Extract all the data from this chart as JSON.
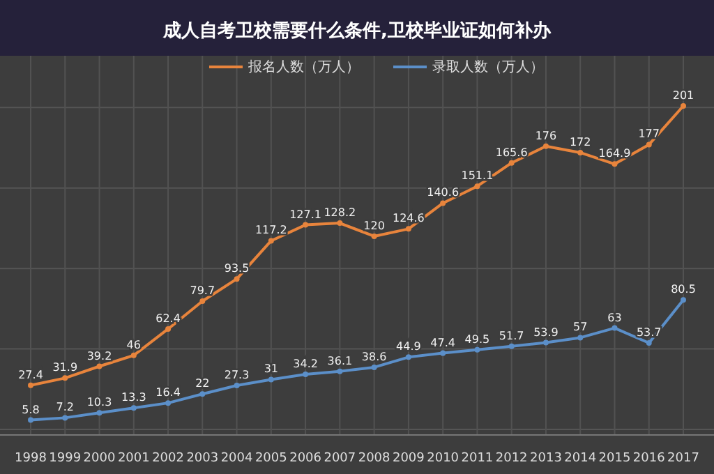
{
  "chart_data": {
    "type": "line",
    "title": "成人自考卫校需要什么条件,卫校毕业证如何补办",
    "categories": [
      "1998",
      "1999",
      "2000",
      "2001",
      "2002",
      "2003",
      "2004",
      "2005",
      "2006",
      "2007",
      "2008",
      "2009",
      "2010",
      "2011",
      "2012",
      "2013",
      "2014",
      "2015",
      "2016",
      "2017"
    ],
    "series": [
      {
        "name": "报名人数（万人）",
        "color": "#e8843c",
        "values": [
          27.4,
          31.9,
          39.2,
          46,
          62.4,
          79.7,
          93.5,
          117.2,
          127.1,
          128.2,
          120,
          124.6,
          140.6,
          151.1,
          165.6,
          176,
          172,
          164.9,
          177,
          201
        ]
      },
      {
        "name": "录取人数（万人）",
        "color": "#5b8fc9",
        "values": [
          5.8,
          7.2,
          10.3,
          13.3,
          16.4,
          22,
          27.3,
          31,
          34.2,
          36.1,
          38.6,
          44.9,
          47.4,
          49.5,
          51.7,
          53.9,
          57,
          63,
          53.7,
          80.5
        ]
      }
    ],
    "yticks": [
      {
        "value": 0,
        "label": null
      },
      {
        "value": 50,
        "label": null
      },
      {
        "value": 100,
        "label": null
      },
      {
        "value": 150,
        "label": null
      },
      {
        "value": 200,
        "label": null
      }
    ],
    "tick_labels": "x",
    "grid": true,
    "legend": "top",
    "marker": "circle",
    "line_style": "solid",
    "data_labels": true
  }
}
